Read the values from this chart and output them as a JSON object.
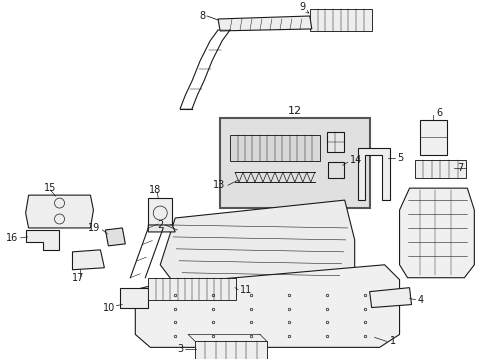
{
  "bg_color": "#ffffff",
  "line_color": "#1a1a1a",
  "fig_w": 4.89,
  "fig_h": 3.6,
  "dpi": 100,
  "label_fs": 7,
  "lw": 0.8
}
